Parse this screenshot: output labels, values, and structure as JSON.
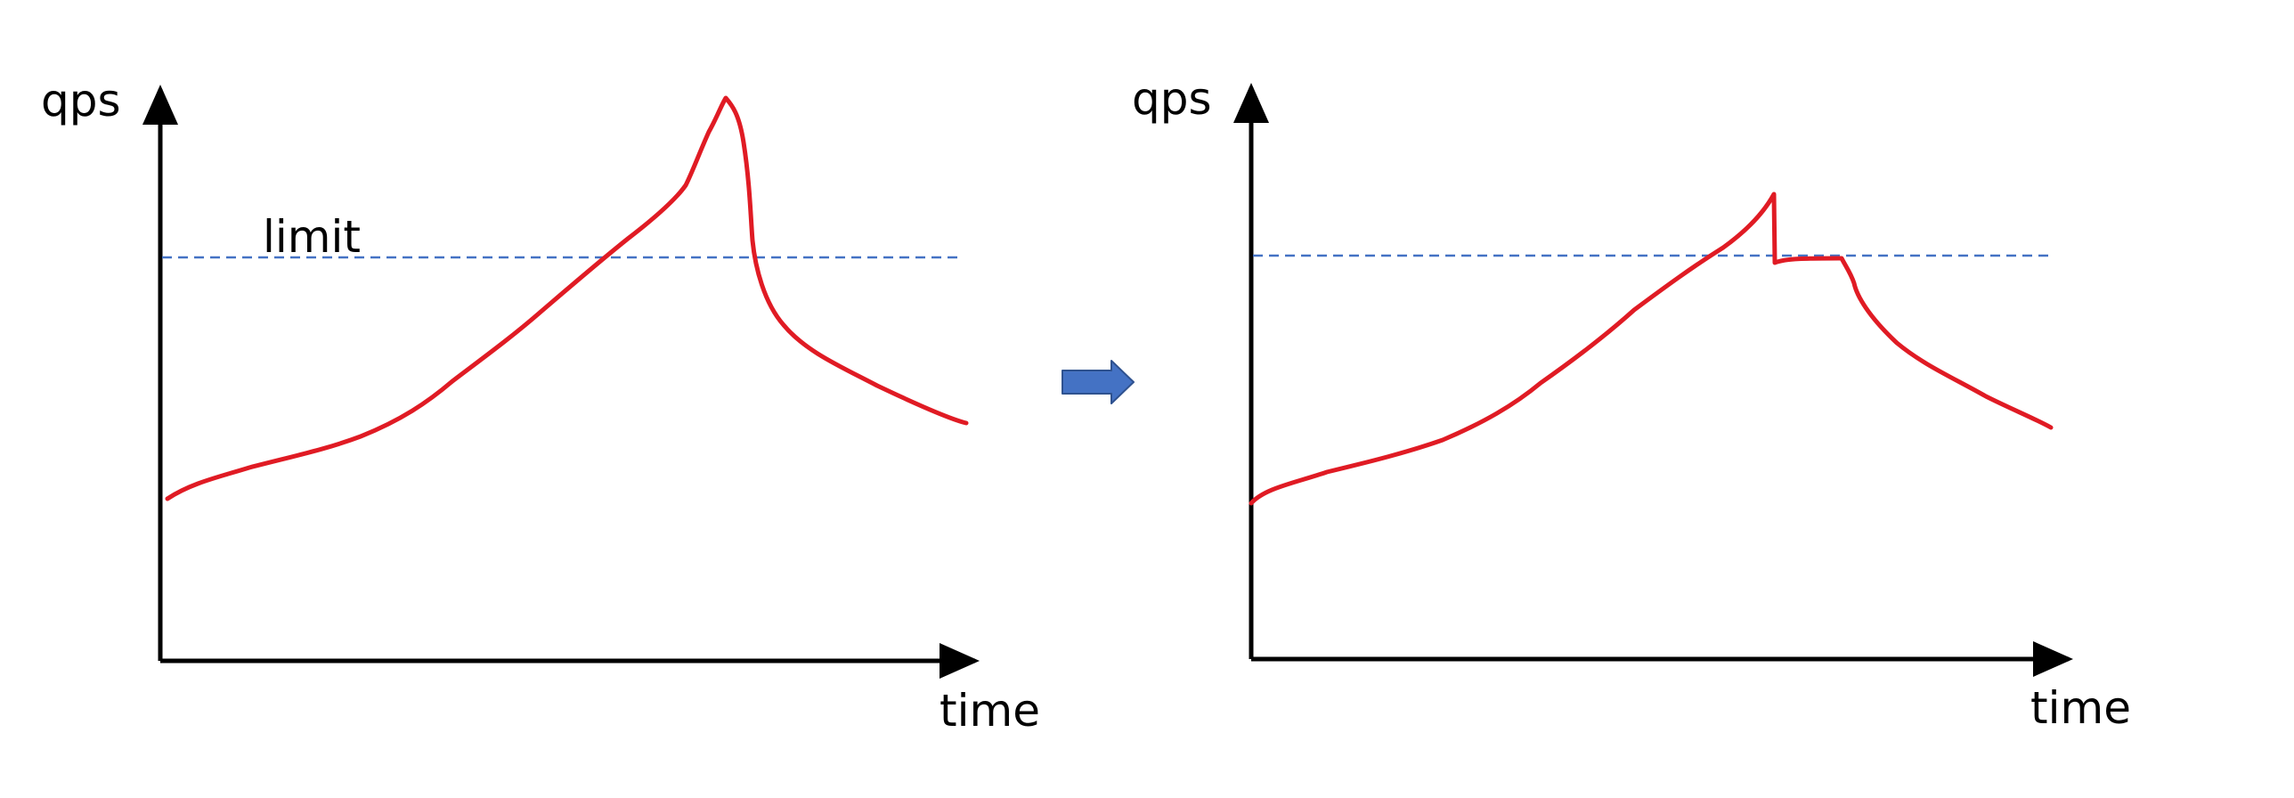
{
  "diagram": {
    "before": {
      "y_label": "qps",
      "x_label": "time",
      "threshold_label": "limit"
    },
    "after": {
      "y_label": "qps",
      "x_label": "time",
      "threshold_label": ""
    },
    "transition_icon": "right-arrow-icon"
  },
  "colors": {
    "curve": "#e01b24",
    "threshold": "#4472c4",
    "axis": "#000000",
    "arrow_fill": "#4472c4",
    "arrow_stroke": "#2f528f"
  }
}
